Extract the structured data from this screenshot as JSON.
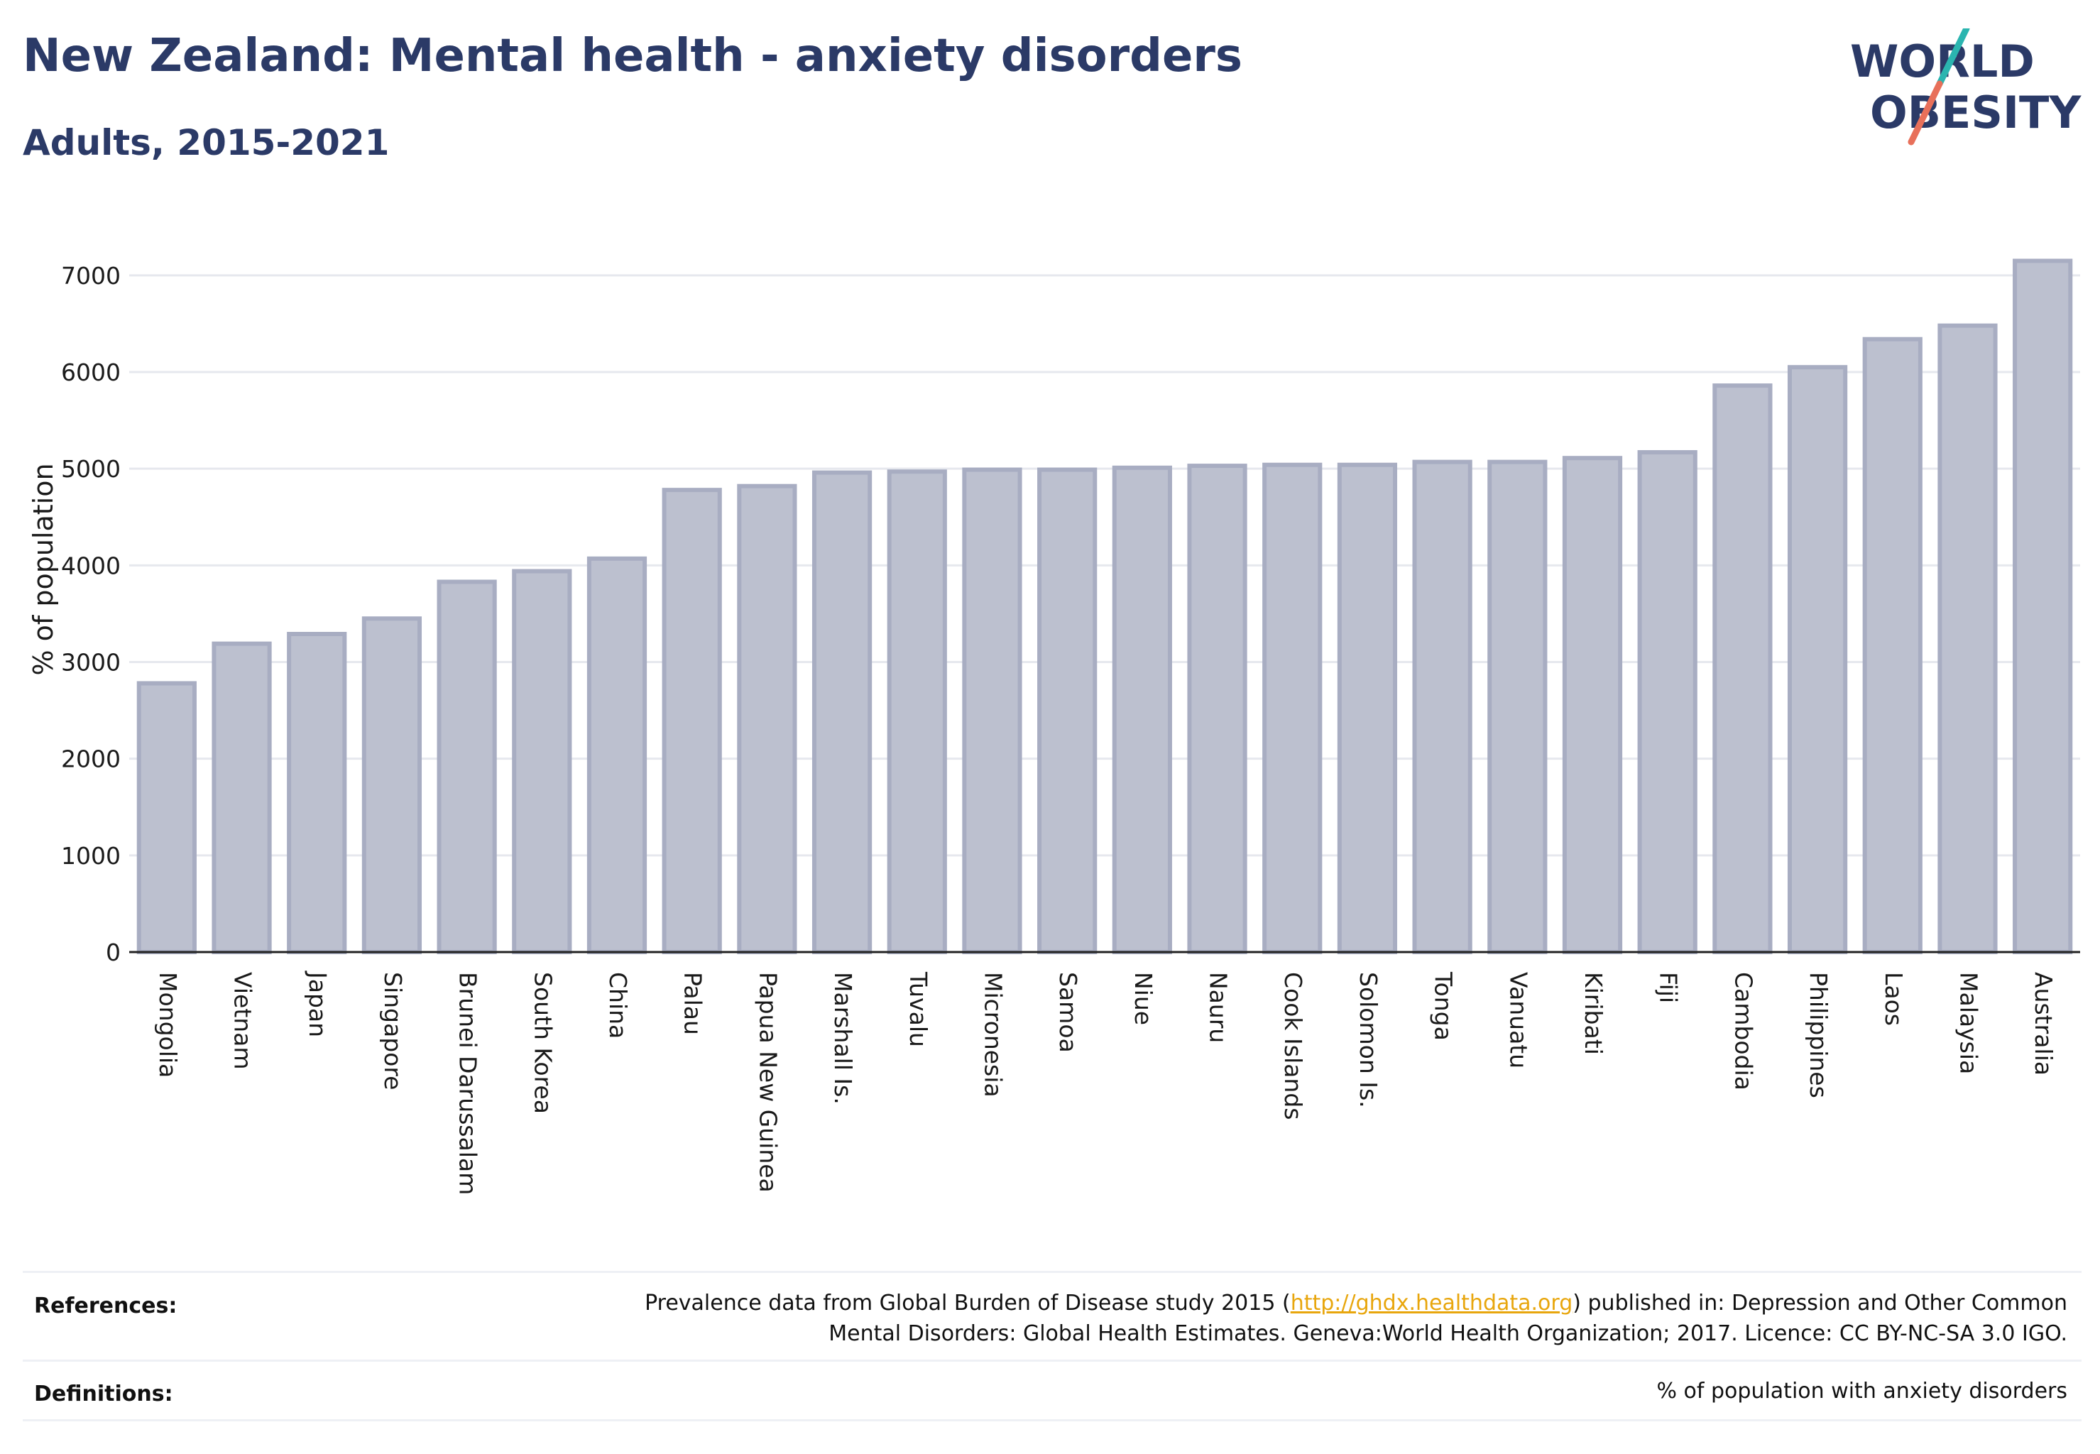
{
  "header": {
    "title": "New Zealand: Mental health - anxiety disorders",
    "subtitle": "Adults, 2015-2021"
  },
  "logo": {
    "line1": "WORLD",
    "line2": "OBESITY",
    "text_color": "#2b3a67",
    "slash_top_color": "#2bb5b0",
    "slash_bottom_color": "#e8705a"
  },
  "chart_data": {
    "type": "bar",
    "ylabel": "% of population",
    "xlabel": "",
    "ylim": [
      0,
      7300
    ],
    "yticks": [
      0,
      1000,
      2000,
      3000,
      4000,
      5000,
      6000,
      7000
    ],
    "grid": true,
    "bar_color": "#bcc0cf",
    "bar_edge_color": "#a8adc2",
    "categories": [
      "Mongolia",
      "Vietnam",
      "Japan",
      "Singapore",
      "Brunei Darussalam",
      "South Korea",
      "China",
      "Palau",
      "Papua New Guinea",
      "Marshall Is.",
      "Tuvalu",
      "Micronesia",
      "Samoa",
      "Niue",
      "Nauru",
      "Cook Islands",
      "Solomon Is.",
      "Tonga",
      "Vanuatu",
      "Kiribati",
      "Fiji",
      "Cambodia",
      "Philippines",
      "Laos",
      "Malaysia",
      "Australia"
    ],
    "values": [
      2780,
      3190,
      3290,
      3450,
      3830,
      3940,
      4070,
      4780,
      4820,
      4960,
      4970,
      4990,
      4990,
      5010,
      5030,
      5040,
      5040,
      5070,
      5070,
      5110,
      5170,
      5860,
      6050,
      6340,
      6480,
      7150
    ]
  },
  "footer": {
    "references_label": "References:",
    "references_pre": "Prevalence data from Global Burden of Disease study 2015 (",
    "references_link": "http://ghdx.healthdata.org",
    "references_post": ") published in: Depression and Other Common",
    "references_line2": "Mental Disorders: Global Health Estimates. Geneva:World Health Organization; 2017. Licence: CC BY-NC-SA 3.0 IGO.",
    "definitions_label": "Definitions:",
    "definitions_text": "% of population with anxiety disorders"
  }
}
